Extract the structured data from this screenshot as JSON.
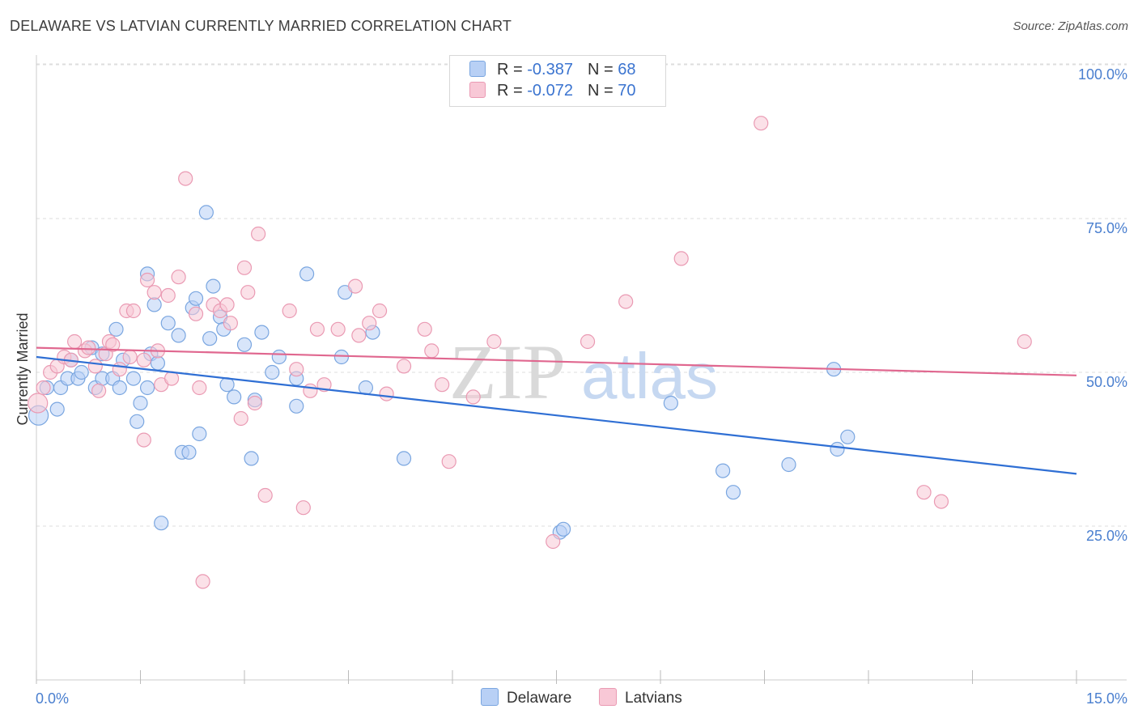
{
  "header": {
    "title": "DELAWARE VS LATVIAN CURRENTLY MARRIED CORRELATION CHART",
    "source": "Source: ZipAtlas.com"
  },
  "legend_top": {
    "rows": [
      {
        "r_label": "R = ",
        "r_value": "-0.387",
        "n_label": "N = ",
        "n_value": "68"
      },
      {
        "r_label": "R = ",
        "r_value": "-0.072",
        "n_label": "N = ",
        "n_value": "70"
      }
    ]
  },
  "legend_bottom": {
    "items": [
      {
        "label": "Delaware"
      },
      {
        "label": "Latvians"
      }
    ]
  },
  "watermark": {
    "part1": "ZIP",
    "part2": "atlas"
  },
  "colors": {
    "delaware_fill": "#b8d0f5",
    "delaware_stroke": "#7aa6e0",
    "delaware_line": "#2f6fd4",
    "latvian_fill": "#f8c8d6",
    "latvian_stroke": "#ea9ab3",
    "latvian_line": "#e0678f",
    "tick_text": "#4a7fcf",
    "grid": "#dddddd"
  },
  "chart_data": {
    "type": "scatter",
    "title": "DELAWARE VS LATVIAN CURRENTLY MARRIED CORRELATION CHART",
    "xlabel": "",
    "ylabel": "Currently Married",
    "xlim": [
      0,
      15
    ],
    "ylim": [
      0,
      105
    ],
    "x_tick_labels": [
      {
        "x": 0,
        "label": "0.0%"
      },
      {
        "x": 15,
        "label": "15.0%"
      }
    ],
    "x_minor_ticks": [
      0,
      1.5,
      3,
      4.5,
      6,
      7.5,
      9,
      10.5,
      12,
      13.5,
      15
    ],
    "y_ticks": [
      {
        "y": 25,
        "label": "25.0%"
      },
      {
        "y": 50,
        "label": "50.0%"
      },
      {
        "y": 75,
        "label": "75.0%"
      },
      {
        "y": 100,
        "label": "100.0%"
      }
    ],
    "grid": true,
    "series": [
      {
        "name": "Delaware",
        "r": -0.387,
        "n": 68,
        "trend": {
          "x0": 0,
          "y0": 52.5,
          "x1": 15,
          "y1": 33.5
        },
        "points": [
          [
            0.03,
            43
          ],
          [
            0.15,
            47.5
          ],
          [
            0.3,
            44
          ],
          [
            0.35,
            47.5
          ],
          [
            0.45,
            49
          ],
          [
            0.5,
            52
          ],
          [
            0.6,
            49
          ],
          [
            0.65,
            50
          ],
          [
            0.8,
            54
          ],
          [
            0.85,
            47.5
          ],
          [
            0.95,
            53
          ],
          [
            0.95,
            49
          ],
          [
            1.1,
            49
          ],
          [
            1.15,
            57
          ],
          [
            1.2,
            47.5
          ],
          [
            1.25,
            52
          ],
          [
            1.4,
            49
          ],
          [
            1.45,
            42
          ],
          [
            1.5,
            45
          ],
          [
            1.6,
            66
          ],
          [
            1.6,
            47.5
          ],
          [
            1.65,
            53
          ],
          [
            1.7,
            61
          ],
          [
            1.75,
            51.5
          ],
          [
            1.8,
            25.5
          ],
          [
            1.9,
            58
          ],
          [
            2.05,
            56
          ],
          [
            2.1,
            37
          ],
          [
            2.2,
            37
          ],
          [
            2.25,
            60.5
          ],
          [
            2.3,
            62
          ],
          [
            2.35,
            40
          ],
          [
            2.45,
            76
          ],
          [
            2.5,
            55.5
          ],
          [
            2.55,
            64
          ],
          [
            2.65,
            59
          ],
          [
            2.7,
            57
          ],
          [
            2.75,
            48
          ],
          [
            2.85,
            46
          ],
          [
            3.0,
            54.5
          ],
          [
            3.1,
            36
          ],
          [
            3.15,
            45.5
          ],
          [
            3.25,
            56.5
          ],
          [
            3.4,
            50
          ],
          [
            3.5,
            52.5
          ],
          [
            3.75,
            49
          ],
          [
            3.75,
            44.5
          ],
          [
            3.9,
            66
          ],
          [
            4.4,
            52.5
          ],
          [
            4.45,
            63
          ],
          [
            4.75,
            47.5
          ],
          [
            4.85,
            56.5
          ],
          [
            5.3,
            36
          ],
          [
            7.55,
            24
          ],
          [
            7.6,
            24.5
          ],
          [
            9.15,
            45
          ],
          [
            9.9,
            34
          ],
          [
            10.05,
            30.5
          ],
          [
            10.85,
            35
          ],
          [
            11.55,
            37.5
          ],
          [
            11.7,
            39.5
          ],
          [
            11.5,
            50.5
          ]
        ]
      },
      {
        "name": "Latvians",
        "r": -0.072,
        "n": 70,
        "trend": {
          "x0": 0,
          "y0": 54,
          "x1": 15,
          "y1": 49.5
        },
        "points": [
          [
            0.02,
            45
          ],
          [
            0.1,
            47.5
          ],
          [
            0.2,
            50
          ],
          [
            0.3,
            51
          ],
          [
            0.4,
            52.5
          ],
          [
            0.5,
            52
          ],
          [
            0.55,
            55
          ],
          [
            0.7,
            53.5
          ],
          [
            0.75,
            54
          ],
          [
            0.85,
            51
          ],
          [
            0.9,
            47
          ],
          [
            1.0,
            53
          ],
          [
            1.05,
            55
          ],
          [
            1.1,
            54.5
          ],
          [
            1.2,
            50.5
          ],
          [
            1.3,
            60
          ],
          [
            1.35,
            52.5
          ],
          [
            1.4,
            60
          ],
          [
            1.55,
            52
          ],
          [
            1.55,
            39
          ],
          [
            1.6,
            65
          ],
          [
            1.7,
            63
          ],
          [
            1.75,
            53.5
          ],
          [
            1.8,
            48
          ],
          [
            1.9,
            62.5
          ],
          [
            1.95,
            49
          ],
          [
            2.05,
            65.5
          ],
          [
            2.15,
            81.5
          ],
          [
            2.3,
            59.5
          ],
          [
            2.35,
            47.5
          ],
          [
            2.4,
            16
          ],
          [
            2.55,
            61
          ],
          [
            2.65,
            60
          ],
          [
            2.75,
            61
          ],
          [
            2.8,
            58
          ],
          [
            2.95,
            42.5
          ],
          [
            3.0,
            67
          ],
          [
            3.05,
            63
          ],
          [
            3.15,
            45
          ],
          [
            3.2,
            72.5
          ],
          [
            3.3,
            30
          ],
          [
            3.65,
            60
          ],
          [
            3.75,
            50.5
          ],
          [
            3.85,
            28
          ],
          [
            3.95,
            47
          ],
          [
            4.05,
            57
          ],
          [
            4.15,
            48
          ],
          [
            4.35,
            57
          ],
          [
            4.6,
            64
          ],
          [
            4.65,
            56
          ],
          [
            4.8,
            58
          ],
          [
            4.95,
            60
          ],
          [
            5.05,
            46.5
          ],
          [
            5.3,
            51
          ],
          [
            5.6,
            57
          ],
          [
            5.7,
            53.5
          ],
          [
            5.85,
            48
          ],
          [
            5.95,
            35.5
          ],
          [
            6.3,
            46
          ],
          [
            6.6,
            55
          ],
          [
            7.45,
            22.5
          ],
          [
            7.95,
            55
          ],
          [
            8.5,
            61.5
          ],
          [
            9.3,
            68.5
          ],
          [
            10.45,
            90.5
          ],
          [
            12.8,
            30.5
          ],
          [
            13.05,
            29
          ],
          [
            14.25,
            55
          ]
        ]
      }
    ]
  }
}
